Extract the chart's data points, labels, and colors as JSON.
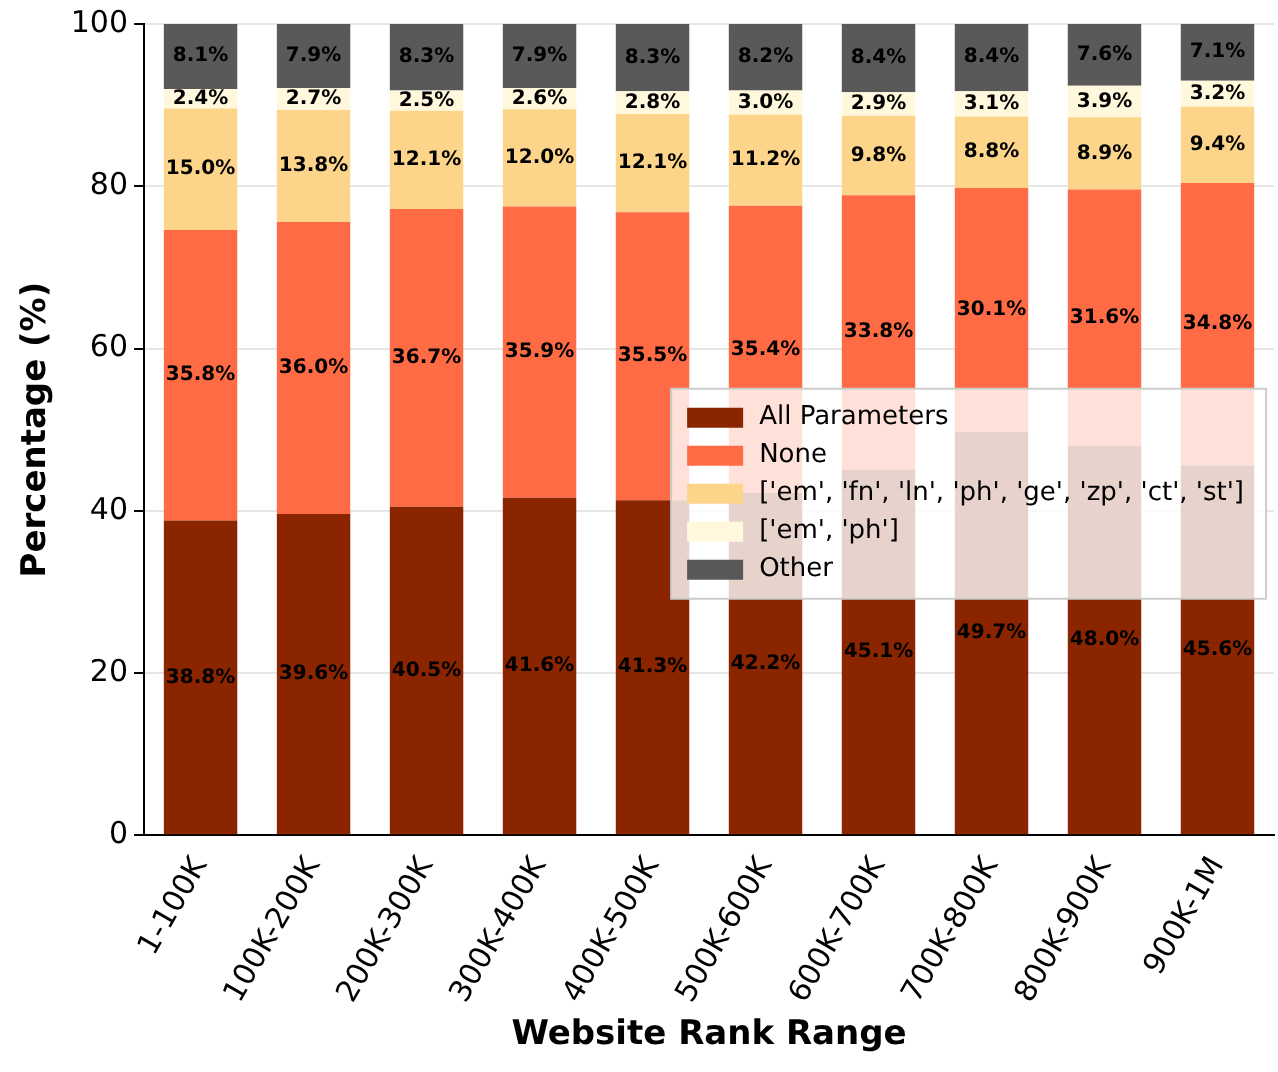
{
  "chart_data": {
    "type": "bar",
    "stacked": true,
    "xlabel": "Website Rank Range",
    "ylabel": "Percentage (%)",
    "categories": [
      "1-100K",
      "100K-200K",
      "200K-300K",
      "300K-400K",
      "400K-500K",
      "500K-600K",
      "600K-700K",
      "700K-800K",
      "800K-900K",
      "900K-1M"
    ],
    "ylim": [
      0,
      100
    ],
    "yticks": [
      0,
      20,
      40,
      60,
      80,
      100
    ],
    "grid": "y",
    "legend": "right",
    "series": [
      {
        "name": "All Parameters",
        "color": "#8b2500",
        "values": [
          38.8,
          39.6,
          40.5,
          41.6,
          41.3,
          42.2,
          45.1,
          49.7,
          48.0,
          45.6
        ],
        "value_labels": [
          "38.8%",
          "39.6%",
          "40.5%",
          "41.6%",
          "41.3%",
          "42.2%",
          "45.1%",
          "49.7%",
          "48.0%",
          "45.6%"
        ]
      },
      {
        "name": "None",
        "color": "#ff6b45",
        "values": [
          35.8,
          36.0,
          36.7,
          35.9,
          35.5,
          35.4,
          33.8,
          30.1,
          31.6,
          34.8
        ],
        "value_labels": [
          "35.8%",
          "36.0%",
          "36.7%",
          "35.9%",
          "35.5%",
          "35.4%",
          "33.8%",
          "30.1%",
          "31.6%",
          "34.8%"
        ]
      },
      {
        "name": "['em', 'fn', 'ln', 'ph', 'ge', 'zp', 'ct', 'st']",
        "color": "#fdd58a",
        "values": [
          15.0,
          13.8,
          12.1,
          12.0,
          12.1,
          11.2,
          9.8,
          8.8,
          8.9,
          9.4
        ],
        "value_labels": [
          "15.0%",
          "13.8%",
          "12.1%",
          "12.0%",
          "12.1%",
          "11.2%",
          "9.8%",
          "8.8%",
          "8.9%",
          "9.4%"
        ]
      },
      {
        "name": "['em', 'ph']",
        "color": "#fff8dc",
        "values": [
          2.4,
          2.7,
          2.5,
          2.6,
          2.8,
          3.0,
          2.9,
          3.1,
          3.9,
          3.2
        ],
        "value_labels": [
          "2.4%",
          "2.7%",
          "2.5%",
          "2.6%",
          "2.8%",
          "3.0%",
          "2.9%",
          "3.1%",
          "3.9%",
          "3.2%"
        ]
      },
      {
        "name": "Other",
        "color": "#595959",
        "values": [
          8.1,
          7.9,
          8.3,
          7.9,
          8.3,
          8.2,
          8.4,
          8.4,
          7.6,
          7.1
        ],
        "value_labels": [
          "8.1%",
          "7.9%",
          "8.3%",
          "7.9%",
          "8.3%",
          "8.2%",
          "8.4%",
          "8.4%",
          "7.6%",
          "7.1%"
        ]
      }
    ]
  }
}
